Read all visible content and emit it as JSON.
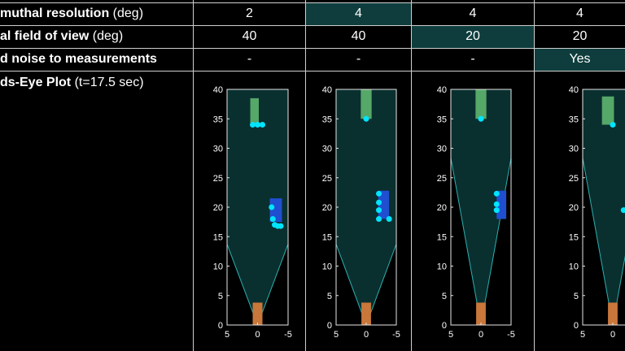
{
  "colors": {
    "highlight": "#0f3d3d",
    "fov_fill": "#0a2f2f",
    "fov_edge": "#2bb0b0",
    "target_green": "#55a868",
    "target_blue": "#1f4fd0",
    "detection": "#00e5ff",
    "ego_orange": "#c9773a",
    "axis": "#e6e6e6"
  },
  "rows": [
    {
      "label_bold": "muthal resolution",
      "label_rest": " (deg)",
      "values": [
        "2",
        "4",
        "4",
        "4"
      ],
      "highlight": [
        false,
        true,
        false,
        false
      ]
    },
    {
      "label_bold": "al field of view",
      "label_rest": " (deg)",
      "values": [
        "40",
        "40",
        "20",
        "20"
      ],
      "highlight": [
        false,
        false,
        true,
        false
      ]
    },
    {
      "label_bold": "d noise to measurements",
      "label_rest": "",
      "values": [
        "-",
        "-",
        "-",
        "Yes"
      ],
      "highlight": [
        false,
        false,
        false,
        true
      ]
    }
  ],
  "plot_row": {
    "label_bold": "ds-Eye Plot",
    "label_rest": " (t=17.5 sec)"
  },
  "chart_data": [
    {
      "type": "scatter",
      "fov_deg": 40,
      "xlim": [
        5,
        -5
      ],
      "ylim": [
        0,
        40
      ],
      "xticks": [
        "5",
        "0",
        "-5"
      ],
      "yticks": [
        "0",
        "5",
        "10",
        "15",
        "20",
        "25",
        "30",
        "35",
        "40"
      ],
      "targets": [
        {
          "name": "green",
          "x": [
            -0.2,
            1.2
          ],
          "y": [
            34,
            38.5
          ]
        },
        {
          "name": "blue",
          "x": [
            -2,
            -4
          ],
          "y": [
            17.5,
            21.5
          ]
        }
      ],
      "ego": {
        "x": [
          -0.8,
          0.8
        ],
        "y": [
          0,
          3.8
        ]
      },
      "detections": {
        "x": [
          0.8,
          0,
          -0.8,
          -2.3,
          -2.5,
          -2.8,
          -3.3,
          -3.8
        ],
        "y": [
          34,
          34,
          34,
          20,
          18,
          17,
          16.8,
          16.8
        ]
      }
    },
    {
      "type": "scatter",
      "fov_deg": 40,
      "xlim": [
        5,
        -5
      ],
      "ylim": [
        0,
        40
      ],
      "xticks": [
        "5",
        "0",
        "-5"
      ],
      "yticks": [
        "0",
        "5",
        "10",
        "15",
        "20",
        "25",
        "30",
        "35",
        "40"
      ],
      "targets": [
        {
          "name": "green",
          "x": [
            -0.9,
            0.9
          ],
          "y": [
            35,
            40
          ]
        },
        {
          "name": "blue",
          "x": [
            -2,
            -3.8
          ],
          "y": [
            18,
            22.8
          ]
        }
      ],
      "ego": {
        "x": [
          -0.8,
          0.8
        ],
        "y": [
          0,
          3.8
        ]
      },
      "detections": {
        "x": [
          0,
          -2.1,
          -2.1,
          -2.1,
          -2.1,
          -3.8
        ],
        "y": [
          35,
          22.3,
          20.8,
          19.5,
          18,
          18
        ]
      }
    },
    {
      "type": "scatter",
      "fov_deg": 20,
      "xlim": [
        5,
        -5
      ],
      "ylim": [
        0,
        40
      ],
      "xticks": [
        "5",
        "0",
        "-5"
      ],
      "yticks": [
        "0",
        "5",
        "10",
        "15",
        "20",
        "25",
        "30",
        "35",
        "40"
      ],
      "targets": [
        {
          "name": "green",
          "x": [
            -0.9,
            0.9
          ],
          "y": [
            35,
            40
          ]
        },
        {
          "name": "blue",
          "x": [
            -2.6,
            -4.2
          ],
          "y": [
            18,
            22.8
          ]
        }
      ],
      "ego": {
        "x": [
          -0.8,
          0.8
        ],
        "y": [
          0,
          3.8
        ]
      },
      "detections": {
        "x": [
          0,
          -2.6,
          -2.6,
          -2.6
        ],
        "y": [
          35,
          22.3,
          20.5,
          19.5
        ]
      }
    },
    {
      "type": "scatter",
      "fov_deg": 20,
      "xlim": [
        5,
        -5
      ],
      "ylim": [
        0,
        40
      ],
      "xticks": [
        "5",
        "0"
      ],
      "yticks": [
        "0",
        "5",
        "10",
        "15",
        "20",
        "25",
        "30",
        "35",
        "40"
      ],
      "targets": [
        {
          "name": "green",
          "x": [
            -0.2,
            1.8
          ],
          "y": [
            34,
            38.8
          ]
        }
      ],
      "ego": {
        "x": [
          -0.8,
          0.8
        ],
        "y": [
          0,
          3.8
        ]
      },
      "detections": {
        "x": [
          0,
          -1.8
        ],
        "y": [
          34,
          19.5
        ]
      }
    }
  ]
}
